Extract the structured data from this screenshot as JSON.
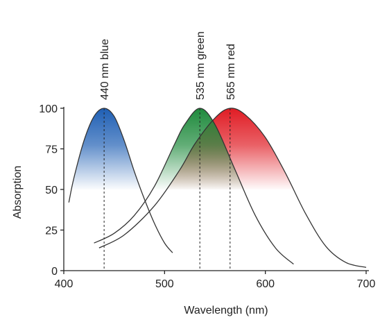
{
  "chart_data": {
    "type": "line",
    "title": "",
    "xlabel": "Wavelength (nm)",
    "ylabel": "Absorption",
    "xlim": [
      400,
      700
    ],
    "ylim": [
      0,
      100
    ],
    "x_ticks": [
      400,
      500,
      600,
      700
    ],
    "y_ticks": [
      0,
      25,
      50,
      75,
      100
    ],
    "grid": false,
    "legend": "none",
    "fill_floor": 50,
    "series": [
      {
        "key": "blue",
        "peak_label": "440 nm blue",
        "peak": 440,
        "color": "#1f5fb4",
        "x": [
          405,
          410,
          420,
          430,
          440,
          450,
          460,
          470,
          480,
          490,
          500,
          508
        ],
        "y": [
          42,
          57,
          80,
          95,
          100,
          95,
          80,
          61,
          44,
          29,
          17,
          11
        ]
      },
      {
        "key": "green",
        "peak_label": "535 nm green",
        "peak": 535,
        "color": "#1e8a3c",
        "x": [
          430,
          450,
          470,
          490,
          510,
          520,
          535,
          550,
          570,
          590,
          610,
          628
        ],
        "y": [
          17,
          23,
          34,
          52,
          78,
          90,
          100,
          90,
          62,
          34,
          14,
          4
        ]
      },
      {
        "key": "red",
        "peak_label": "565 nm red",
        "peak": 565,
        "color": "#e01c24",
        "x": [
          435,
          460,
          490,
          515,
          530,
          550,
          565,
          580,
          600,
          620,
          640,
          660,
          680,
          700
        ],
        "y": [
          14,
          22,
          40,
          62,
          78,
          94,
          100,
          96,
          82,
          60,
          35,
          15,
          5,
          2
        ]
      }
    ]
  }
}
